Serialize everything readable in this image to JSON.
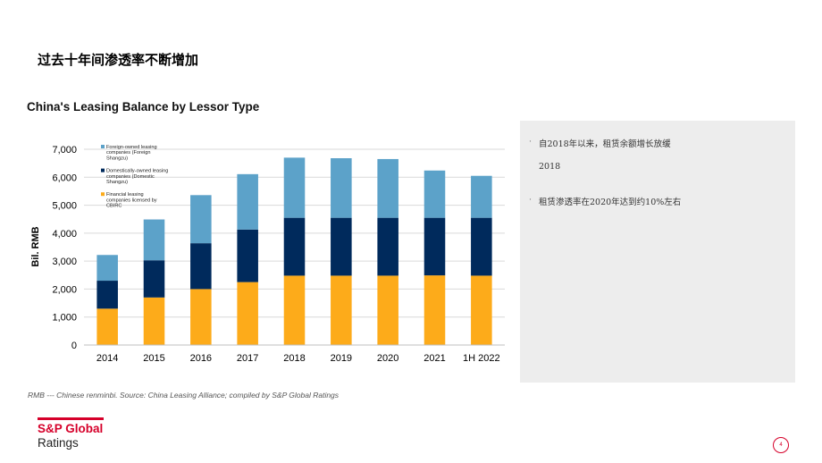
{
  "slide": {
    "title": "过去十年间渗透率不断增加",
    "source_note": "RMB --- Chinese renminbi.  Source: China Leasing Alliance; compiled by S&P Global Ratings",
    "page_number": "4"
  },
  "logo": {
    "line1": "S&P Global",
    "line2": "Ratings"
  },
  "panel": {
    "bullets": [
      {
        "marker": "·",
        "text": "自2018年以来，租赁余额增长放缓"
      },
      {
        "marker": "",
        "text": "2018"
      },
      {
        "marker": "·",
        "text": "租赁渗透率在2020年达到约10%左右"
      }
    ]
  },
  "colors": {
    "financial": "#fdab1a",
    "domestic": "#002a5c",
    "foreign": "#5ca2c9",
    "grid": "#d9d9d9",
    "brand_red": "#d6002a"
  },
  "chart_data": {
    "type": "bar",
    "stacked": true,
    "title": "China's Leasing Balance by Lessor Type",
    "xlabel": "",
    "ylabel": "Bil. RMB",
    "ylim": [
      0,
      7000
    ],
    "yticks": [
      0,
      1000,
      2000,
      3000,
      4000,
      5000,
      6000,
      7000
    ],
    "ytick_labels": [
      "0",
      "1,000",
      "2,000",
      "3,000",
      "4,000",
      "5,000",
      "6,000",
      "7,000"
    ],
    "grid": true,
    "legend_position": "top-left",
    "categories": [
      "2014",
      "2015",
      "2016",
      "2017",
      "2018",
      "2019",
      "2020",
      "2021",
      "1H 2022"
    ],
    "series": [
      {
        "name": "Financial leasing companies licensed by CBIRC",
        "color_key": "financial",
        "values": [
          1300,
          1700,
          2000,
          2250,
          2480,
          2480,
          2480,
          2490,
          2480
        ]
      },
      {
        "name": "Domestically-owned leasing companies (Domestic Shangzu)",
        "color_key": "domestic",
        "values": [
          1000,
          1330,
          1640,
          1880,
          2070,
          2070,
          2070,
          2060,
          2070
        ]
      },
      {
        "name": "Foreign-owned leasing companies (Foreign Shangzu)",
        "color_key": "foreign",
        "values": [
          920,
          1460,
          1720,
          1980,
          2150,
          2130,
          2100,
          1690,
          1500
        ]
      }
    ]
  }
}
